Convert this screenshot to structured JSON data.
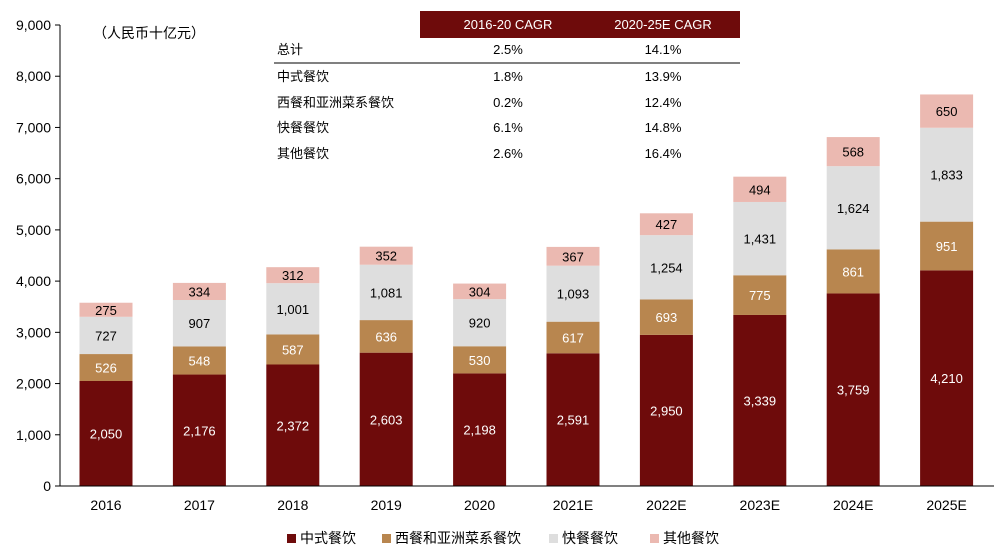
{
  "chart_data": {
    "type": "bar",
    "stacked": true,
    "unit_label": "（人民币十亿元）",
    "categories": [
      "2016",
      "2017",
      "2018",
      "2019",
      "2020",
      "2021E",
      "2022E",
      "2023E",
      "2024E",
      "2025E"
    ],
    "series": [
      {
        "name": "中式餐饮",
        "color": "#6e0b0b",
        "label_color": "#ffffff",
        "values": [
          2050,
          2176,
          2372,
          2603,
          2198,
          2591,
          2950,
          3339,
          3759,
          4210
        ],
        "labels": [
          "2,050",
          "2,176",
          "2,372",
          "2,603",
          "2,198",
          "2,591",
          "2,950",
          "3,339",
          "3,759",
          "4,210"
        ]
      },
      {
        "name": "西餐和亚洲菜系餐饮",
        "color": "#b8864f",
        "label_color": "#ffffff",
        "values": [
          526,
          548,
          587,
          636,
          530,
          617,
          693,
          775,
          861,
          951
        ],
        "labels": [
          "526",
          "548",
          "587",
          "636",
          "530",
          "617",
          "693",
          "775",
          "861",
          "951"
        ]
      },
      {
        "name": "快餐餐饮",
        "color": "#dedede",
        "label_color": "#000000",
        "values": [
          727,
          907,
          1001,
          1081,
          920,
          1093,
          1254,
          1431,
          1624,
          1833
        ],
        "labels": [
          "727",
          "907",
          "1,001",
          "1,081",
          "920",
          "1,093",
          "1,254",
          "1,431",
          "1,624",
          "1,833"
        ]
      },
      {
        "name": "其他餐饮",
        "color": "#ebb9b1",
        "label_color": "#000000",
        "values": [
          275,
          334,
          312,
          352,
          304,
          367,
          427,
          494,
          568,
          650
        ],
        "labels": [
          "275",
          "334",
          "312",
          "352",
          "304",
          "367",
          "427",
          "494",
          "568",
          "650"
        ]
      }
    ],
    "ylim": [
      0,
      9000
    ],
    "yticks": [
      0,
      1000,
      2000,
      3000,
      4000,
      5000,
      6000,
      7000,
      8000,
      9000
    ],
    "ytick_labels": [
      "0",
      "1,000",
      "2,000",
      "3,000",
      "4,000",
      "5,000",
      "6,000",
      "7,000",
      "8,000",
      "9,000"
    ],
    "grid": false,
    "legend_position": "bottom",
    "cagr_table": {
      "header_color": "#6e0b0b",
      "headers": [
        "",
        "2016-20 CAGR",
        "2020-25E CAGR"
      ],
      "rows": [
        [
          "总计",
          "2.5%",
          "14.1%"
        ],
        [
          "中式餐饮",
          "1.8%",
          "13.9%"
        ],
        [
          "西餐和亚洲菜系餐饮",
          "0.2%",
          "12.4%"
        ],
        [
          "快餐餐饮",
          "6.1%",
          "14.8%"
        ],
        [
          "其他餐饮",
          "2.6%",
          "16.4%"
        ]
      ]
    }
  }
}
